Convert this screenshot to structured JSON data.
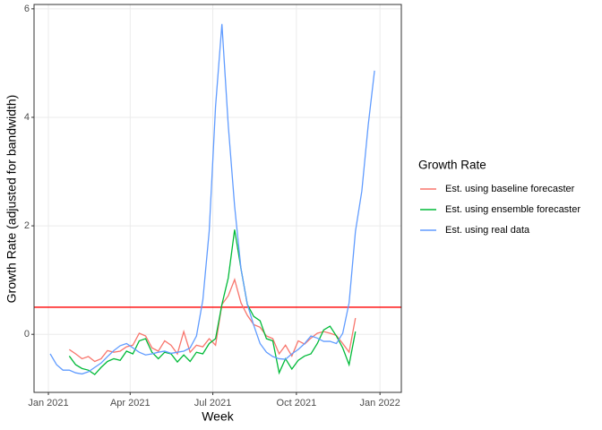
{
  "chart_data": {
    "type": "line",
    "x_label": "Week",
    "y_label": "Growth Rate (adjusted for bandwidth)",
    "legend_title": "Growth Rate",
    "legend_position": "right",
    "grid": true,
    "x": [
      2,
      9,
      16,
      23,
      30,
      37,
      44,
      51,
      58,
      65,
      72,
      79,
      86,
      93,
      100,
      107,
      114,
      121,
      128,
      135,
      142,
      149,
      156,
      163,
      170,
      177,
      184,
      191,
      198,
      205,
      212,
      219,
      226,
      233,
      240,
      247,
      254,
      261,
      268,
      275,
      282,
      289,
      296,
      303,
      310,
      317,
      324,
      331,
      338,
      345,
      352,
      359
    ],
    "xlim": [
      -15.8,
      388.5
    ],
    "xticks": [
      {
        "value": 0,
        "label": "Jan 2021"
      },
      {
        "value": 90,
        "label": "Apr 2021"
      },
      {
        "value": 181,
        "label": "Jul 2021"
      },
      {
        "value": 273,
        "label": "Oct 2021"
      },
      {
        "value": 365,
        "label": "Jan 2022"
      }
    ],
    "ylim": [
      -1.07,
      6.08
    ],
    "yticks": [
      0,
      2,
      4,
      6
    ],
    "hline": {
      "value": 0.5,
      "color": "#ff0000"
    },
    "series": [
      {
        "name": "Est. using baseline forecaster",
        "color": "#F8766D",
        "values": [
          null,
          null,
          null,
          -0.28,
          -0.36,
          -0.45,
          -0.41,
          -0.5,
          -0.45,
          -0.3,
          -0.33,
          -0.31,
          -0.23,
          -0.2,
          0.02,
          -0.03,
          -0.25,
          -0.31,
          -0.12,
          -0.2,
          -0.36,
          0.05,
          -0.33,
          -0.2,
          -0.23,
          -0.08,
          -0.2,
          0.55,
          0.71,
          1.01,
          0.58,
          0.35,
          0.18,
          0.13,
          -0.03,
          -0.08,
          -0.36,
          -0.2,
          -0.4,
          -0.12,
          -0.18,
          -0.07,
          0.02,
          0.05,
          0.02,
          -0.02,
          -0.17,
          -0.33,
          0.3,
          null,
          null,
          null
        ]
      },
      {
        "name": "Est. using ensemble forecaster",
        "color": "#00BA38",
        "values": [
          null,
          null,
          null,
          -0.4,
          -0.56,
          -0.63,
          -0.66,
          -0.74,
          -0.61,
          -0.5,
          -0.45,
          -0.48,
          -0.31,
          -0.36,
          -0.12,
          -0.08,
          -0.33,
          -0.45,
          -0.33,
          -0.36,
          -0.51,
          -0.38,
          -0.5,
          -0.33,
          -0.36,
          -0.17,
          -0.08,
          0.55,
          1.04,
          1.93,
          1.21,
          0.55,
          0.33,
          0.25,
          -0.08,
          -0.12,
          -0.71,
          -0.45,
          -0.64,
          -0.48,
          -0.4,
          -0.36,
          -0.17,
          0.08,
          0.15,
          -0.03,
          -0.25,
          -0.56,
          0.05,
          null,
          null,
          null
        ]
      },
      {
        "name": "Est. using real data",
        "color": "#619CFF",
        "values": [
          -0.36,
          -0.56,
          -0.66,
          -0.66,
          -0.71,
          -0.73,
          -0.69,
          -0.61,
          -0.53,
          -0.41,
          -0.3,
          -0.21,
          -0.17,
          -0.25,
          -0.33,
          -0.38,
          -0.36,
          -0.33,
          -0.31,
          -0.35,
          -0.33,
          -0.31,
          -0.25,
          -0.03,
          0.63,
          1.9,
          4.2,
          5.72,
          3.85,
          2.36,
          1.21,
          0.55,
          0.17,
          -0.17,
          -0.33,
          -0.41,
          -0.45,
          -0.46,
          -0.36,
          -0.28,
          -0.17,
          -0.03,
          -0.07,
          -0.13,
          -0.13,
          -0.17,
          0.02,
          0.58,
          1.9,
          2.64,
          3.85,
          4.86
        ]
      }
    ]
  }
}
